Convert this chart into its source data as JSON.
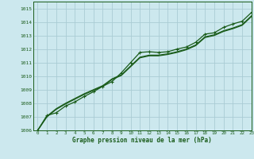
{
  "title": "Graphe pression niveau de la mer (hPa)",
  "bg_color": "#cce8ee",
  "grid_color": "#aaccd4",
  "line_color": "#1a5c1a",
  "xlim": [
    -0.5,
    23
  ],
  "ylim": [
    1006,
    1015.5
  ],
  "xticks": [
    0,
    1,
    2,
    3,
    4,
    5,
    6,
    7,
    8,
    9,
    10,
    11,
    12,
    13,
    14,
    15,
    16,
    17,
    18,
    19,
    20,
    21,
    22,
    23
  ],
  "yticks": [
    1006,
    1007,
    1008,
    1009,
    1010,
    1011,
    1012,
    1013,
    1014,
    1015
  ],
  "series": [
    {
      "y": [
        1006.0,
        1007.1,
        1007.3,
        1007.8,
        1008.1,
        1008.5,
        1008.85,
        1009.25,
        1009.6,
        1010.25,
        1011.0,
        1011.75,
        1011.8,
        1011.75,
        1011.8,
        1012.0,
        1012.15,
        1012.5,
        1013.1,
        1013.2,
        1013.6,
        1013.85,
        1014.05,
        1014.7
      ],
      "marker": "+",
      "lw": 0.9
    },
    {
      "y": [
        1006.0,
        1007.05,
        1007.6,
        1008.0,
        1008.35,
        1008.7,
        1009.0,
        1009.3,
        1009.8,
        1010.1,
        1010.75,
        1011.4,
        1011.55,
        1011.55,
        1011.65,
        1011.8,
        1012.0,
        1012.3,
        1012.9,
        1013.05,
        1013.35,
        1013.55,
        1013.8,
        1014.45
      ],
      "marker": null,
      "lw": 0.9
    },
    {
      "y": [
        1006.0,
        1007.0,
        1007.55,
        1007.95,
        1008.3,
        1008.65,
        1008.95,
        1009.25,
        1009.75,
        1010.05,
        1010.7,
        1011.35,
        1011.5,
        1011.5,
        1011.6,
        1011.75,
        1011.95,
        1012.25,
        1012.85,
        1013.0,
        1013.3,
        1013.5,
        1013.75,
        1014.4
      ],
      "marker": null,
      "lw": 0.9
    }
  ]
}
